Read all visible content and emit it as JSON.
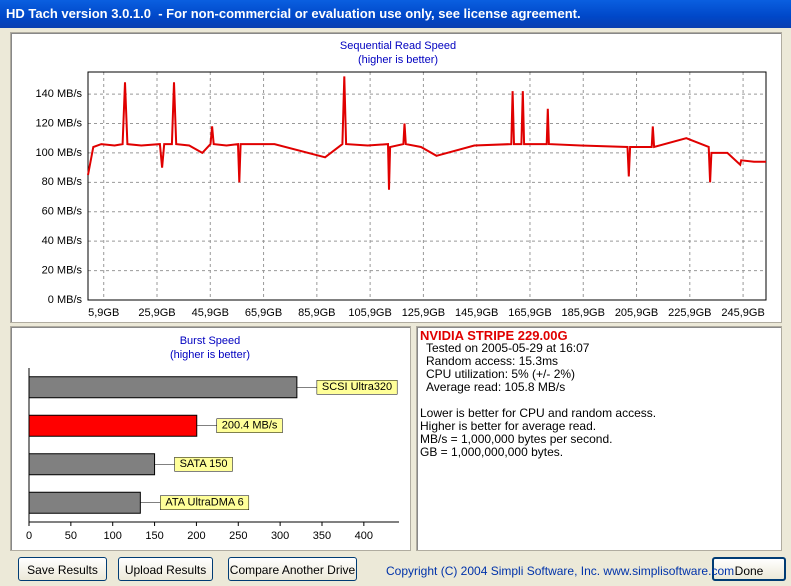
{
  "window": {
    "title": "HD Tach version 3.0.1.0  - For non-commercial or evaluation use only, see license agreement."
  },
  "chart_data": [
    {
      "type": "line",
      "title": "Sequential Read Speed",
      "subtitle": "(higher is better)",
      "x": [
        0,
        2,
        5,
        10,
        13,
        13.9,
        14.8,
        20,
        27,
        27.8,
        28.6,
        31.5,
        32.3,
        33.1,
        38,
        42.9,
        46,
        46.6,
        47.2,
        52,
        56.3,
        56.8,
        57.3,
        70,
        89,
        95.5,
        96.2,
        96.9,
        105,
        112.6,
        113,
        113.4,
        118.4,
        118.8,
        119.3,
        125,
        130.8,
        145,
        158.9,
        159.4,
        159.9,
        162.7,
        163.2,
        163.7,
        172.2,
        172.6,
        173,
        185,
        202.5,
        203,
        203.5,
        211.6,
        212,
        212.5,
        224.6,
        233,
        233.5,
        234,
        240,
        244.8,
        245.2,
        250,
        254.5
      ],
      "values": [
        85,
        104,
        106,
        105,
        106,
        148,
        106,
        105,
        106,
        90,
        106,
        106,
        148,
        106,
        105,
        100,
        106,
        118,
        106,
        105,
        106,
        80,
        106,
        106,
        97,
        106,
        152,
        106,
        105,
        106,
        75,
        104,
        106,
        120,
        106,
        104,
        98,
        105,
        106,
        142,
        106,
        106,
        142,
        106,
        106,
        130,
        106,
        105,
        104,
        84,
        104,
        104,
        118,
        104,
        110,
        104,
        80,
        100,
        100,
        92,
        95,
        94,
        94
      ],
      "color": "#e00000",
      "xlim": [
        0,
        254.5
      ],
      "xticks": [
        {
          "value": 5.9,
          "label": "5,9GB"
        },
        {
          "value": 25.9,
          "label": "25,9GB"
        },
        {
          "value": 45.9,
          "label": "45,9GB"
        },
        {
          "value": 65.9,
          "label": "65,9GB"
        },
        {
          "value": 85.9,
          "label": "85,9GB"
        },
        {
          "value": 105.9,
          "label": "105,9GB"
        },
        {
          "value": 125.9,
          "label": "125,9GB"
        },
        {
          "value": 145.9,
          "label": "145,9GB"
        },
        {
          "value": 165.9,
          "label": "165,9GB"
        },
        {
          "value": 185.9,
          "label": "185,9GB"
        },
        {
          "value": 205.9,
          "label": "205,9GB"
        },
        {
          "value": 225.9,
          "label": "225,9GB"
        },
        {
          "value": 245.9,
          "label": "245,9GB"
        }
      ],
      "ylim": [
        0,
        155
      ],
      "yticks": [
        {
          "value": 0,
          "label": "0 MB/s"
        },
        {
          "value": 20,
          "label": "20 MB/s"
        },
        {
          "value": 40,
          "label": "40 MB/s"
        },
        {
          "value": 60,
          "label": "60 MB/s"
        },
        {
          "value": 80,
          "label": "80 MB/s"
        },
        {
          "value": 100,
          "label": "100 MB/s"
        },
        {
          "value": 120,
          "label": "120 MB/s"
        },
        {
          "value": 140,
          "label": "140 MB/s"
        }
      ],
      "grid": true
    },
    {
      "type": "bar",
      "orientation": "horizontal",
      "title": "Burst Speed",
      "subtitle": "(higher is better)",
      "categories": [
        "SCSI Ultra320",
        null,
        "SATA 150",
        "ATA UltraDMA 6"
      ],
      "values": [
        320,
        200.4,
        150,
        133
      ],
      "value_labels": [
        null,
        "200.4 MB/s",
        null,
        null
      ],
      "colors": [
        "#808080",
        "#ff0000",
        "#808080",
        "#808080"
      ],
      "xlim": [
        0,
        442
      ],
      "xticks": [
        0,
        50,
        100,
        150,
        200,
        250,
        300,
        350,
        400
      ]
    }
  ],
  "results": {
    "drive": "NVIDIA STRIPE 229.00G",
    "details": [
      "Tested on 2005-05-29 at 16:07",
      "Random access: 15.3ms",
      "CPU utilization: 5% (+/- 2%)",
      "Average read: 105.8 MB/s"
    ],
    "notes": [
      "Lower is better for CPU and random access.",
      "Higher is better for average read.",
      "MB/s = 1,000,000 bytes per second.",
      "GB = 1,000,000,000 bytes."
    ]
  },
  "buttons": [
    "Save Results",
    "Upload Results",
    "Compare Another Drive",
    "Done"
  ],
  "footer": "Copyright (C) 2004 Simpli Software, Inc. www.simplisoftware.com"
}
